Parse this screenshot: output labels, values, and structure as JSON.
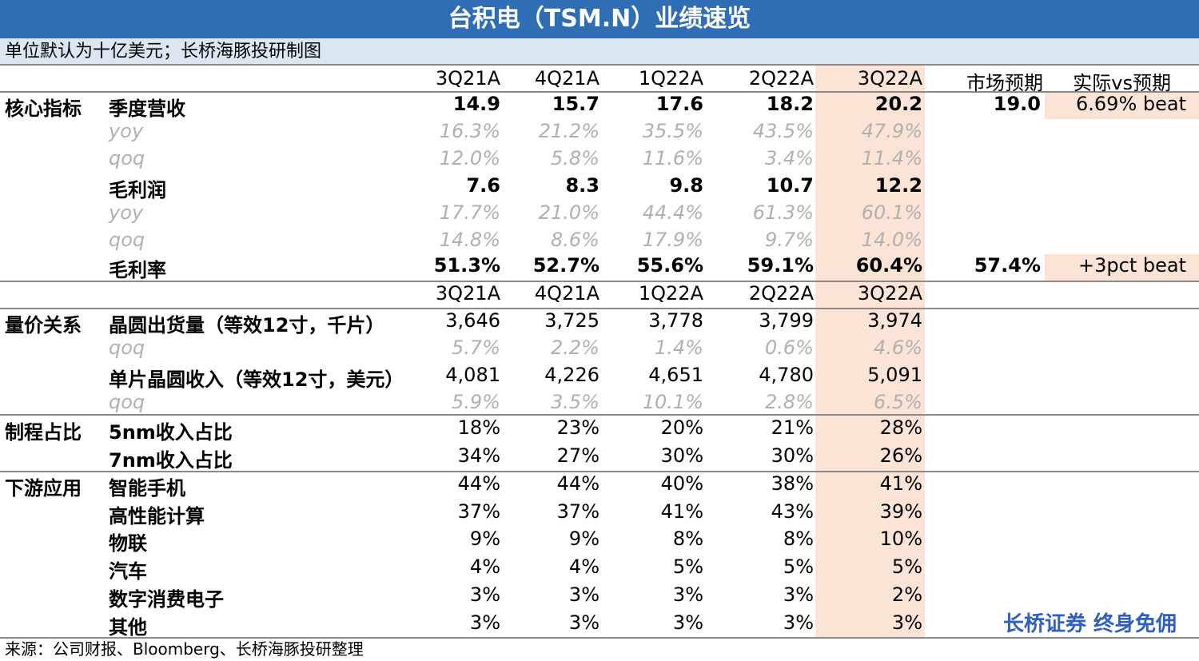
{
  "title": "台积电（TSM.N）业绩速览",
  "subtitle": "单位默认为十亿美元；长桥海豚投研制图",
  "headers": [
    "3Q21A",
    "4Q21A",
    "1Q22A",
    "2Q22A",
    "3Q22A"
  ],
  "expect_header": "市场预期",
  "vs_header": "实际vs预期",
  "rows": [
    {
      "section": "核心指标",
      "label": "季度营收",
      "style": "bold",
      "values": [
        "14.9",
        "15.7",
        "17.6",
        "18.2",
        "20.2"
      ],
      "expect": "19.0",
      "vs": "6.69% beat"
    },
    {
      "section": "",
      "label": "yoy",
      "style": "italic",
      "values": [
        "16.3%",
        "21.2%",
        "35.5%",
        "43.5%",
        "47.9%"
      ],
      "expect": "",
      "vs": ""
    },
    {
      "section": "",
      "label": "qoq",
      "style": "italic",
      "values": [
        "12.0%",
        "5.8%",
        "11.6%",
        "3.4%",
        "11.4%"
      ],
      "expect": "",
      "vs": ""
    },
    {
      "section": "",
      "label": "毛利润",
      "style": "bold",
      "values": [
        "7.6",
        "8.3",
        "9.8",
        "10.7",
        "12.2"
      ],
      "expect": "",
      "vs": ""
    },
    {
      "section": "",
      "label": "yoy",
      "style": "italic",
      "values": [
        "17.7%",
        "21.0%",
        "44.4%",
        "61.3%",
        "60.1%"
      ],
      "expect": "",
      "vs": ""
    },
    {
      "section": "",
      "label": "qoq",
      "style": "italic",
      "values": [
        "14.8%",
        "8.6%",
        "17.9%",
        "9.7%",
        "14.0%"
      ],
      "expect": "",
      "vs": ""
    },
    {
      "section": "",
      "label": "毛利率",
      "style": "bold",
      "values": [
        "51.3%",
        "52.7%",
        "55.6%",
        "59.1%",
        "60.4%"
      ],
      "expect": "57.4%",
      "vs": "+3pct beat"
    },
    {
      "section": "",
      "label": "",
      "style": "header",
      "values": [
        "3Q21A",
        "4Q21A",
        "1Q22A",
        "2Q22A",
        "3Q22A"
      ],
      "expect": "",
      "vs": ""
    },
    {
      "section": "量价关系",
      "label": "晶圆出货量（等效12寸，千片）",
      "style": "labelbold",
      "values": [
        "3,646",
        "3,725",
        "3,778",
        "3,799",
        "3,974"
      ],
      "expect": "",
      "vs": ""
    },
    {
      "section": "",
      "label": "qoq",
      "style": "italic",
      "values": [
        "5.7%",
        "2.2%",
        "1.4%",
        "0.6%",
        "4.6%"
      ],
      "expect": "",
      "vs": ""
    },
    {
      "section": "",
      "label": "单片晶圆收入（等效12寸，美元）",
      "style": "labelbold",
      "values": [
        "4,081",
        "4,226",
        "4,651",
        "4,780",
        "5,091"
      ],
      "expect": "",
      "vs": ""
    },
    {
      "section": "",
      "label": "qoq",
      "style": "italic",
      "values": [
        "5.9%",
        "3.5%",
        "10.1%",
        "2.8%",
        "6.5%"
      ],
      "expect": "",
      "vs": ""
    },
    {
      "section": "制程占比",
      "label": "5nm收入占比",
      "style": "labelbold",
      "values": [
        "18%",
        "23%",
        "20%",
        "21%",
        "28%"
      ],
      "expect": "",
      "vs": ""
    },
    {
      "section": "",
      "label": "7nm收入占比",
      "style": "labelbold",
      "values": [
        "34%",
        "27%",
        "30%",
        "30%",
        "26%"
      ],
      "expect": "",
      "vs": ""
    },
    {
      "section": "下游应用",
      "label": "智能手机",
      "style": "labelbold",
      "values": [
        "44%",
        "44%",
        "40%",
        "38%",
        "41%"
      ],
      "expect": "",
      "vs": ""
    },
    {
      "section": "",
      "label": "高性能计算",
      "style": "labelbold",
      "values": [
        "37%",
        "37%",
        "41%",
        "43%",
        "39%"
      ],
      "expect": "",
      "vs": ""
    },
    {
      "section": "",
      "label": "物联",
      "style": "labelbold",
      "values": [
        "9%",
        "9%",
        "8%",
        "8%",
        "10%"
      ],
      "expect": "",
      "vs": ""
    },
    {
      "section": "",
      "label": "汽车",
      "style": "labelbold",
      "values": [
        "4%",
        "4%",
        "5%",
        "5%",
        "5%"
      ],
      "expect": "",
      "vs": ""
    },
    {
      "section": "",
      "label": "数字消费电子",
      "style": "labelbold",
      "values": [
        "3%",
        "3%",
        "3%",
        "3%",
        "2%"
      ],
      "expect": "",
      "vs": ""
    },
    {
      "section": "",
      "label": "其他",
      "style": "labelbold",
      "values": [
        "3%",
        "3%",
        "3%",
        "3%",
        "3%"
      ],
      "expect": "",
      "vs": ""
    }
  ],
  "source": "来源：公司财报、Bloomberg、长桥海豚投研整理",
  "brand": "长桥证券 终身免佣",
  "colors": {
    "title_bg": "#2f6db5",
    "subtitle_bg": "#dce6f1",
    "highlight": "#fbe4d5",
    "italic_text": "#b0b0b0",
    "brand": "#2f5fc0"
  }
}
